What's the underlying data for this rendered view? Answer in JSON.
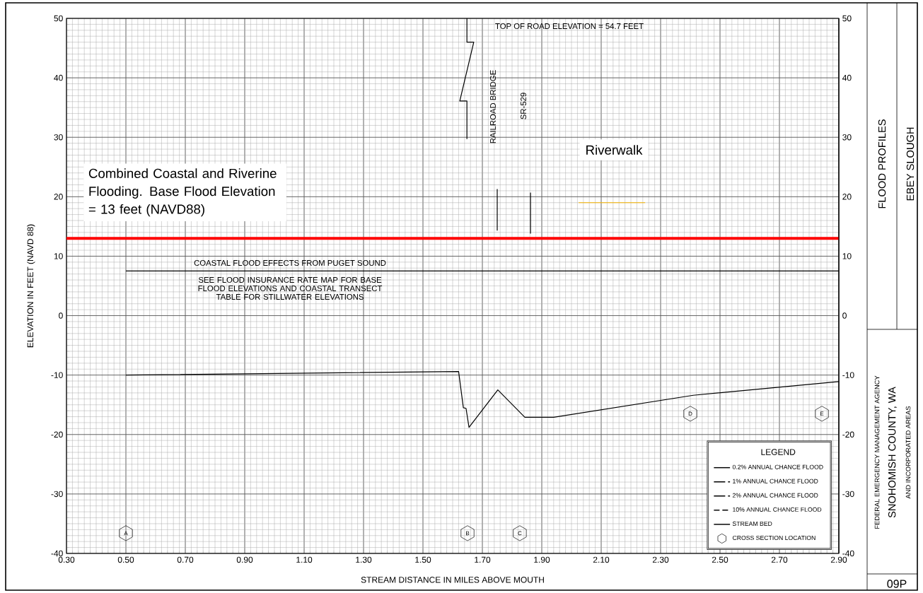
{
  "chart_data": {
    "type": "line",
    "title": "FLOOD PROFILES",
    "subtitle": "EBEY SLOUGH",
    "xlabel": "STREAM DISTANCE IN MILES ABOVE MOUTH",
    "ylabel": "ELEVATION IN FEET (NAVD 88)",
    "xlim": [
      0.3,
      2.9
    ],
    "xticks": [
      {
        "value": 0.3,
        "label": "0.30"
      },
      {
        "value": 0.5,
        "label": "0.50"
      },
      {
        "value": 0.7,
        "label": "0.70"
      },
      {
        "value": 0.9,
        "label": "0.90"
      },
      {
        "value": 1.1,
        "label": "1.10"
      },
      {
        "value": 1.3,
        "label": "1.30"
      },
      {
        "value": 1.5,
        "label": "1.50"
      },
      {
        "value": 1.7,
        "label": "1.70"
      },
      {
        "value": 1.9,
        "label": "1.90"
      },
      {
        "value": 2.1,
        "label": "2.10"
      },
      {
        "value": 2.3,
        "label": "2.30"
      },
      {
        "value": 2.5,
        "label": "2.50"
      },
      {
        "value": 2.7,
        "label": "2.70"
      },
      {
        "value": 2.9,
        "label": "2.90"
      }
    ],
    "ylim": [
      -40,
      50
    ],
    "yticks": [
      -40,
      -30,
      -20,
      -10,
      0,
      10,
      20,
      30,
      40,
      50
    ],
    "y2lim": [
      -40,
      50
    ],
    "y2ticks": [
      -40,
      -30,
      -20,
      -10,
      0,
      10,
      20,
      30,
      40,
      50
    ],
    "grid": true,
    "legend": "bottom right",
    "legend_title": "LEGEND",
    "series": [
      {
        "name": "0.2% ANNUAL CHANCE FLOOD",
        "color": "#000000",
        "line_style": "solid"
      },
      {
        "name": "1% ANNUAL CHANCE FLOOD",
        "color": "#000000",
        "line_style": "dashdotdotted"
      },
      {
        "name": "2% ANNUAL CHANCE FLOOD",
        "color": "#000000",
        "line_style": "dashdotted"
      },
      {
        "name": "10% ANNUAL CHANCE FLOOD",
        "color": "#000000",
        "line_style": "dashed"
      },
      {
        "name": "STREAM BED",
        "color": "#000000",
        "line_style": "solid",
        "x": [
          0.5,
          1.62,
          1.636,
          1.645,
          1.655,
          1.752,
          1.843,
          1.94,
          2.41,
          2.9
        ],
        "values": [
          -10.0,
          -9.4,
          -15.5,
          -15.6,
          -18.8,
          -12.5,
          -17.1,
          -17.1,
          -13.4,
          -11.1
        ]
      },
      {
        "name": "CROSS SECTION LOCATION",
        "type": "scatter",
        "color": "#000000",
        "x": [
          0.5,
          1.65,
          1.826,
          2.4,
          2.843
        ],
        "values": [
          -36.6,
          -36.6,
          -36.6,
          -16.5,
          -16.5
        ]
      },
      {
        "color": "#000000",
        "x": [
          1.648,
          1.648,
          1.624,
          1.671,
          1.648,
          1.648
        ],
        "values": [
          29.7,
          36.1,
          36.1,
          46.0,
          46.0,
          50.0
        ]
      },
      {
        "color": "#000000",
        "x": [
          1.75,
          1.75
        ],
        "values": [
          14.3,
          21.3
        ]
      },
      {
        "color": "#000000",
        "x": [
          1.862,
          1.862
        ],
        "values": [
          13.8,
          20.7
        ]
      },
      {
        "color": "#000000",
        "x": [
          0.5,
          2.9
        ],
        "values": [
          7.5,
          7.5
        ]
      },
      {
        "color": "#f5b400",
        "x": [
          2.024,
          2.248
        ],
        "values": [
          19.0,
          19.0
        ]
      }
    ],
    "ref_lines": [
      {
        "axis": "y",
        "value": 13,
        "color": "#ff0000",
        "label": "Combined Coastal and Riverine Flooding. Base Flood Elevation = 13 feet (NAVD88)"
      }
    ],
    "annotations": [
      "TOP OF ROAD ELEVATION = 54.7 FEET",
      "RAILROAD BRIDGE",
      "SR-529",
      "Riverwalk",
      "COASTAL FLOOD EFFECTS FROM PUGET SOUND",
      "SEE FLOOD INSURANCE RATE MAP FOR BASE FLOOD ELEVATIONS AND COASTAL TRANSECT TABLE FOR STILLWATER ELEVATIONS",
      {
        "text": "A",
        "x": 0.5,
        "y": -36.6
      },
      {
        "text": "B",
        "x": 1.65,
        "y": -36.6
      },
      {
        "text": "C",
        "x": 1.826,
        "y": -36.6
      },
      {
        "text": "D",
        "x": 2.4,
        "y": -16.5
      },
      {
        "text": "E",
        "x": 2.843,
        "y": -16.5
      },
      "FEDERAL EMERGENCY MANAGEMENT AGENCY",
      "SNOHOMISH COUNTY, WA",
      "AND INCORPORATED AREAS",
      "09P"
    ]
  }
}
